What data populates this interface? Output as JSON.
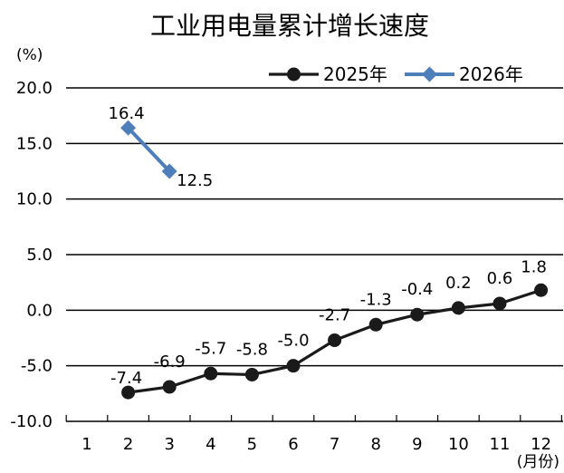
{
  "chart_data": {
    "type": "line",
    "title": "工业用电量累计增长速度",
    "ylabel": "(%)",
    "xlabel": "(月份)",
    "x": [
      1,
      2,
      3,
      4,
      5,
      6,
      7,
      8,
      9,
      10,
      11,
      12
    ],
    "x_tick_labels": [
      "1",
      "2",
      "3",
      "4",
      "5",
      "6",
      "7",
      "8",
      "9",
      "10",
      "11",
      "12"
    ],
    "ylim": [
      -10,
      20
    ],
    "y_tick_labels": [
      "20.0",
      "15.0",
      "10.0",
      "5.0",
      "0.0",
      "-5.0",
      "-10.0"
    ],
    "y_tick_values": [
      20,
      15,
      10,
      5,
      0,
      -5,
      -10
    ],
    "grid": "horizontal",
    "legend": "top-right",
    "series": [
      {
        "name": "2025年",
        "color": "#1a1a1a",
        "marker": "circle",
        "x": [
          2,
          3,
          4,
          5,
          6,
          7,
          8,
          9,
          10,
          11,
          12
        ],
        "values": [
          -7.4,
          -6.9,
          -5.7,
          -5.8,
          -5.0,
          -2.7,
          -1.3,
          -0.4,
          0.2,
          0.6,
          1.8
        ],
        "labels": [
          "-7.4",
          "-6.9",
          "-5.7",
          "-5.8",
          "-5.0",
          "-2.7",
          "-1.3",
          "-0.4",
          "0.2",
          "0.6",
          "1.8"
        ]
      },
      {
        "name": "2026年",
        "color": "#4f7fba",
        "marker": "diamond",
        "x": [
          2,
          3
        ],
        "values": [
          16.4,
          12.5
        ],
        "labels": [
          "16.4",
          "12.5"
        ]
      }
    ]
  }
}
